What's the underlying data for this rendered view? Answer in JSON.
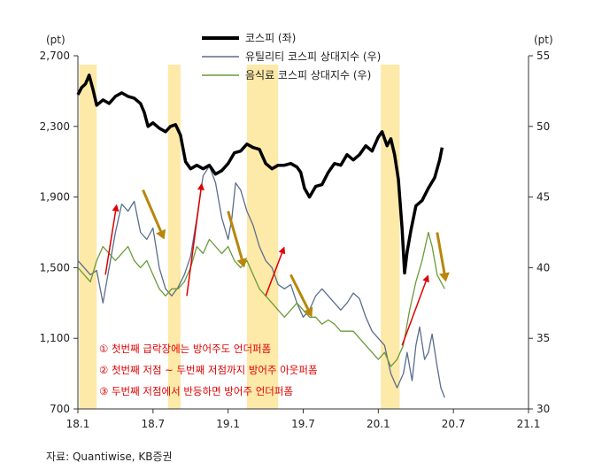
{
  "chart_data": {
    "type": "line",
    "left_axis": {
      "unit_label": "(pt)",
      "ylim": [
        700,
        2700
      ],
      "ticks": [
        "2,700",
        "2,300",
        "1,900",
        "1,500",
        "1,100",
        "700"
      ]
    },
    "right_axis": {
      "unit_label": "(pt)",
      "ylim": [
        30,
        55
      ],
      "ticks": [
        "55",
        "50",
        "45",
        "40",
        "35",
        "30"
      ]
    },
    "x_ticks": [
      {
        "label": "18.1",
        "month": 0
      },
      {
        "label": "18.7",
        "month": 6
      },
      {
        "label": "19.1",
        "month": 12
      },
      {
        "label": "19.7",
        "month": 18
      },
      {
        "label": "20.1",
        "month": 24
      },
      {
        "label": "20.7",
        "month": 30
      },
      {
        "label": "21.1",
        "month": 36
      }
    ],
    "xlim": [
      0,
      36
    ],
    "shaded_periods": [
      [
        0.1,
        1.5
      ],
      [
        7.2,
        8.2
      ],
      [
        13.5,
        16.0
      ],
      [
        24.2,
        25.7
      ]
    ],
    "series": [
      {
        "name": "코스피 (좌)",
        "axis": "left",
        "color": "#000000",
        "points": [
          [
            0.0,
            2480
          ],
          [
            0.3,
            2520
          ],
          [
            0.6,
            2540
          ],
          [
            0.9,
            2590
          ],
          [
            1.2,
            2510
          ],
          [
            1.5,
            2420
          ],
          [
            2.0,
            2450
          ],
          [
            2.5,
            2430
          ],
          [
            3.0,
            2470
          ],
          [
            3.5,
            2490
          ],
          [
            4.0,
            2470
          ],
          [
            4.5,
            2460
          ],
          [
            5.0,
            2430
          ],
          [
            5.3,
            2380
          ],
          [
            5.6,
            2300
          ],
          [
            6.0,
            2320
          ],
          [
            6.5,
            2290
          ],
          [
            7.0,
            2270
          ],
          [
            7.4,
            2300
          ],
          [
            7.8,
            2310
          ],
          [
            8.2,
            2250
          ],
          [
            8.6,
            2100
          ],
          [
            9.0,
            2060
          ],
          [
            9.5,
            2080
          ],
          [
            10.0,
            2060
          ],
          [
            10.5,
            2080
          ],
          [
            11.0,
            2030
          ],
          [
            11.5,
            2050
          ],
          [
            12.0,
            2090
          ],
          [
            12.5,
            2150
          ],
          [
            13.0,
            2160
          ],
          [
            13.5,
            2200
          ],
          [
            14.0,
            2180
          ],
          [
            14.5,
            2170
          ],
          [
            15.0,
            2090
          ],
          [
            15.5,
            2060
          ],
          [
            16.0,
            2080
          ],
          [
            16.5,
            2080
          ],
          [
            17.0,
            2090
          ],
          [
            17.5,
            2070
          ],
          [
            17.8,
            2040
          ],
          [
            18.1,
            1950
          ],
          [
            18.5,
            1900
          ],
          [
            19.0,
            1960
          ],
          [
            19.5,
            1970
          ],
          [
            20.0,
            2040
          ],
          [
            20.5,
            2090
          ],
          [
            21.0,
            2080
          ],
          [
            21.5,
            2140
          ],
          [
            22.0,
            2110
          ],
          [
            22.5,
            2140
          ],
          [
            23.0,
            2190
          ],
          [
            23.5,
            2160
          ],
          [
            24.0,
            2240
          ],
          [
            24.3,
            2270
          ],
          [
            24.7,
            2190
          ],
          [
            25.0,
            2230
          ],
          [
            25.3,
            2140
          ],
          [
            25.6,
            2000
          ],
          [
            25.9,
            1720
          ],
          [
            26.1,
            1470
          ],
          [
            26.3,
            1590
          ],
          [
            26.6,
            1710
          ],
          [
            27.0,
            1850
          ],
          [
            27.5,
            1880
          ],
          [
            28.0,
            1950
          ],
          [
            28.5,
            2010
          ],
          [
            28.9,
            2110
          ],
          [
            29.1,
            2180
          ]
        ]
      },
      {
        "name": "유틸리티 코스피 상대지수 (우)",
        "axis": "right",
        "color": "#5a6d8e",
        "points": [
          [
            0.0,
            40.5
          ],
          [
            0.5,
            40.0
          ],
          [
            1.0,
            39.5
          ],
          [
            1.5,
            39.8
          ],
          [
            2.0,
            37.5
          ],
          [
            2.5,
            40.0
          ],
          [
            3.0,
            42.5
          ],
          [
            3.5,
            44.5
          ],
          [
            4.0,
            44.0
          ],
          [
            4.5,
            44.7
          ],
          [
            5.0,
            42.5
          ],
          [
            5.5,
            42.0
          ],
          [
            6.0,
            42.8
          ],
          [
            6.5,
            40.0
          ],
          [
            7.0,
            38.5
          ],
          [
            7.5,
            38.0
          ],
          [
            8.0,
            38.6
          ],
          [
            8.5,
            39.5
          ],
          [
            9.0,
            40.8
          ],
          [
            9.5,
            43.5
          ],
          [
            10.0,
            46.5
          ],
          [
            10.5,
            47.2
          ],
          [
            11.0,
            46.0
          ],
          [
            11.5,
            43.5
          ],
          [
            12.0,
            42.0
          ],
          [
            12.3,
            43.5
          ],
          [
            12.6,
            46.0
          ],
          [
            13.0,
            45.5
          ],
          [
            13.5,
            44.0
          ],
          [
            14.0,
            43.0
          ],
          [
            14.5,
            41.5
          ],
          [
            15.0,
            40.5
          ],
          [
            15.5,
            40.0
          ],
          [
            16.0,
            38.8
          ],
          [
            16.5,
            38.5
          ],
          [
            17.0,
            38.8
          ],
          [
            17.5,
            37.5
          ],
          [
            18.0,
            36.5
          ],
          [
            18.5,
            37.0
          ],
          [
            19.0,
            38.0
          ],
          [
            19.5,
            38.5
          ],
          [
            20.0,
            38.0
          ],
          [
            20.5,
            37.5
          ],
          [
            21.0,
            37.0
          ],
          [
            21.5,
            37.5
          ],
          [
            22.0,
            38.2
          ],
          [
            22.5,
            37.8
          ],
          [
            23.0,
            36.5
          ],
          [
            23.5,
            35.5
          ],
          [
            24.0,
            35.0
          ],
          [
            24.5,
            34.5
          ],
          [
            25.0,
            32.5
          ],
          [
            25.5,
            31.5
          ],
          [
            26.0,
            32.5
          ],
          [
            26.3,
            34.0
          ],
          [
            26.7,
            32.0
          ],
          [
            27.0,
            34.5
          ],
          [
            27.3,
            35.8
          ],
          [
            27.7,
            33.5
          ],
          [
            28.0,
            34.0
          ],
          [
            28.3,
            35.3
          ],
          [
            28.7,
            33.0
          ],
          [
            29.0,
            31.5
          ],
          [
            29.3,
            30.8
          ]
        ]
      },
      {
        "name": "음식료 코스피 상대지수 (우)",
        "axis": "right",
        "color": "#6a9a3a",
        "points": [
          [
            0.0,
            40.0
          ],
          [
            0.5,
            39.5
          ],
          [
            1.0,
            39.0
          ],
          [
            1.5,
            40.5
          ],
          [
            2.0,
            41.5
          ],
          [
            2.5,
            41.0
          ],
          [
            3.0,
            40.5
          ],
          [
            3.5,
            41.0
          ],
          [
            4.0,
            41.5
          ],
          [
            4.5,
            40.5
          ],
          [
            5.0,
            40.0
          ],
          [
            5.5,
            40.5
          ],
          [
            6.0,
            39.5
          ],
          [
            6.5,
            38.5
          ],
          [
            7.0,
            38.0
          ],
          [
            7.5,
            38.5
          ],
          [
            8.0,
            38.5
          ],
          [
            8.5,
            39.0
          ],
          [
            9.0,
            40.0
          ],
          [
            9.5,
            41.5
          ],
          [
            10.0,
            41.0
          ],
          [
            10.5,
            42.0
          ],
          [
            11.0,
            41.5
          ],
          [
            11.5,
            41.0
          ],
          [
            12.0,
            41.5
          ],
          [
            12.5,
            40.5
          ],
          [
            13.0,
            40.0
          ],
          [
            13.5,
            40.5
          ],
          [
            14.0,
            39.5
          ],
          [
            14.5,
            38.5
          ],
          [
            15.0,
            38.0
          ],
          [
            15.5,
            37.5
          ],
          [
            16.0,
            37.0
          ],
          [
            16.5,
            36.5
          ],
          [
            17.0,
            37.0
          ],
          [
            17.5,
            37.5
          ],
          [
            18.0,
            37.0
          ],
          [
            18.5,
            36.5
          ],
          [
            19.0,
            36.5
          ],
          [
            19.5,
            36.0
          ],
          [
            20.0,
            36.3
          ],
          [
            20.5,
            36.0
          ],
          [
            21.0,
            35.5
          ],
          [
            21.5,
            35.5
          ],
          [
            22.0,
            35.5
          ],
          [
            22.5,
            35.0
          ],
          [
            23.0,
            34.5
          ],
          [
            23.5,
            34.0
          ],
          [
            24.0,
            33.5
          ],
          [
            24.5,
            34.0
          ],
          [
            25.0,
            33.0
          ],
          [
            25.5,
            33.5
          ],
          [
            26.0,
            34.5
          ],
          [
            26.5,
            37.0
          ],
          [
            27.0,
            39.0
          ],
          [
            27.5,
            40.5
          ],
          [
            28.0,
            42.5
          ],
          [
            28.3,
            41.5
          ],
          [
            28.7,
            39.5
          ],
          [
            29.0,
            39.0
          ],
          [
            29.3,
            38.5
          ]
        ]
      }
    ],
    "arrows": [
      {
        "color": "#e00000",
        "from": [
          2.2,
          39.5
        ],
        "to": [
          3.1,
          44.5
        ]
      },
      {
        "color": "#b8860b",
        "from": [
          5.2,
          45.5
        ],
        "to": [
          6.9,
          42.0
        ]
      },
      {
        "color": "#e00000",
        "from": [
          8.7,
          38.0
        ],
        "to": [
          9.9,
          46.0
        ]
      },
      {
        "color": "#b8860b",
        "from": [
          12.0,
          44.0
        ],
        "to": [
          13.3,
          40.0
        ]
      },
      {
        "color": "#e00000",
        "from": [
          15.0,
          38.0
        ],
        "to": [
          16.5,
          41.5
        ]
      },
      {
        "color": "#b8860b",
        "from": [
          17.0,
          39.5
        ],
        "to": [
          18.7,
          36.5
        ]
      },
      {
        "color": "#e00000",
        "from": [
          25.9,
          34.5
        ],
        "to": [
          28.0,
          39.5
        ]
      },
      {
        "color": "#b8860b",
        "from": [
          28.7,
          42.5
        ],
        "to": [
          29.4,
          39.0
        ]
      }
    ],
    "notes": [
      "① 첫번째 급락장에는 방어주도 언더퍼폼",
      "② 첫번째 저점 ~ 두번째 저점까지 방어주 아웃퍼폼",
      "③ 두번째 저점에서 반등하면 방어주 언더퍼폼"
    ],
    "source": "자료: Quantiwise, KB증권"
  }
}
